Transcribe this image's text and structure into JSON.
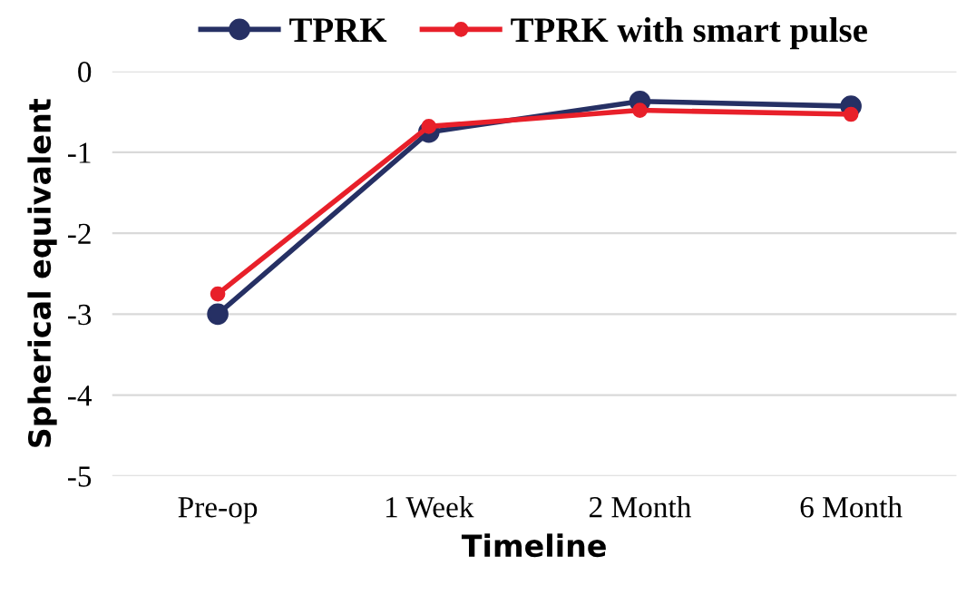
{
  "chart_data": {
    "type": "line",
    "xlabel": "Timeline",
    "ylabel": "Spherical equivalent",
    "categories": [
      "Pre-op",
      "1 Week",
      "2 Month",
      "6 Month"
    ],
    "series": [
      {
        "name": "TPRK",
        "color": "#263064",
        "values": [
          -3.0,
          -0.75,
          -0.37,
          -0.43
        ]
      },
      {
        "name": "TPRK with smart pulse",
        "color": "#e8202a",
        "values": [
          -2.75,
          -0.68,
          -0.48,
          -0.53
        ]
      }
    ],
    "ylim": [
      -5,
      0
    ],
    "yticks": [
      -5,
      -4,
      -3,
      -2,
      -1,
      0
    ],
    "grid": "y",
    "legend": "top",
    "marker": "circle"
  }
}
